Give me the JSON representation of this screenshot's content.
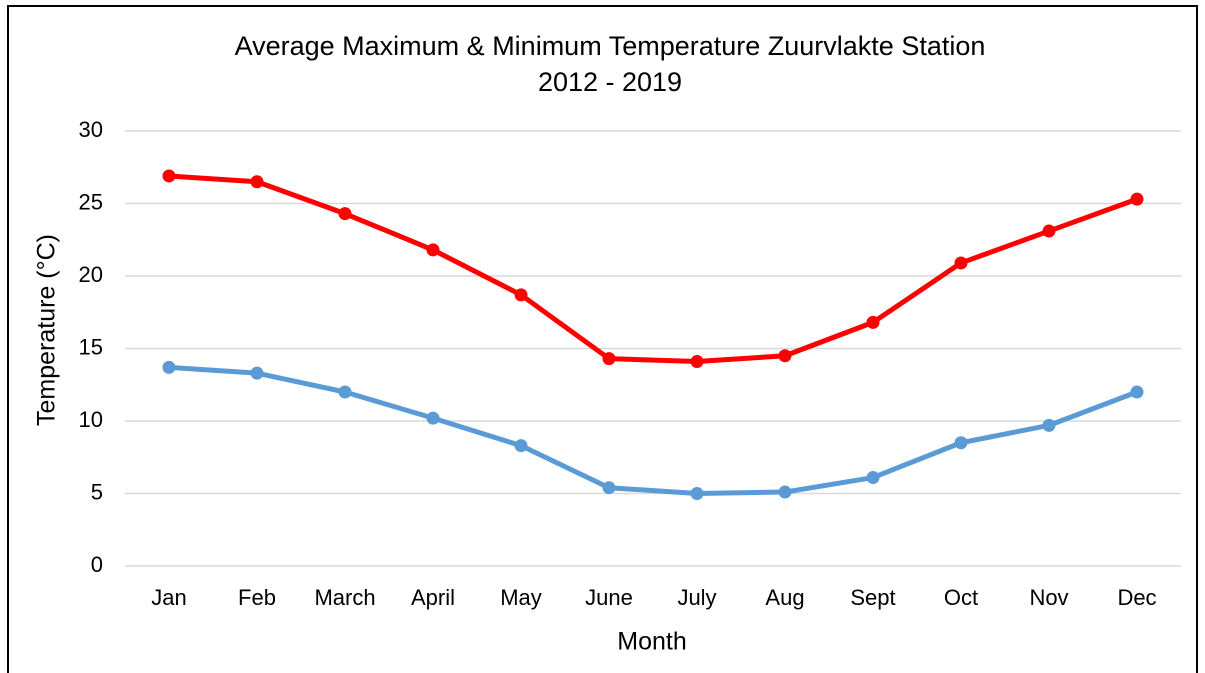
{
  "chart_data": {
    "type": "line",
    "title": "Average Maximum & Minimum Temperature Zuurvlakte Station",
    "subtitle": "2012 - 2019",
    "x_label": "Month",
    "y_label": "Temperature (°C)",
    "categories": [
      "Jan",
      "Feb",
      "March",
      "April",
      "May",
      "June",
      "July",
      "Aug",
      "Sept",
      "Oct",
      "Nov",
      "Dec"
    ],
    "series": [
      {
        "color": "#ff0000",
        "values": [
          26.9,
          26.5,
          24.3,
          21.8,
          18.7,
          14.3,
          14.1,
          14.5,
          16.8,
          20.9,
          23.1,
          25.3
        ]
      },
      {
        "color": "#5b9bd5",
        "values": [
          13.7,
          13.3,
          12.0,
          10.2,
          8.3,
          5.4,
          5.0,
          5.1,
          6.1,
          8.5,
          9.7,
          12.0
        ]
      }
    ],
    "ylim": [
      0,
      30
    ],
    "yticks": [
      0,
      5,
      10,
      15,
      20,
      25,
      30
    ],
    "grid": true
  }
}
